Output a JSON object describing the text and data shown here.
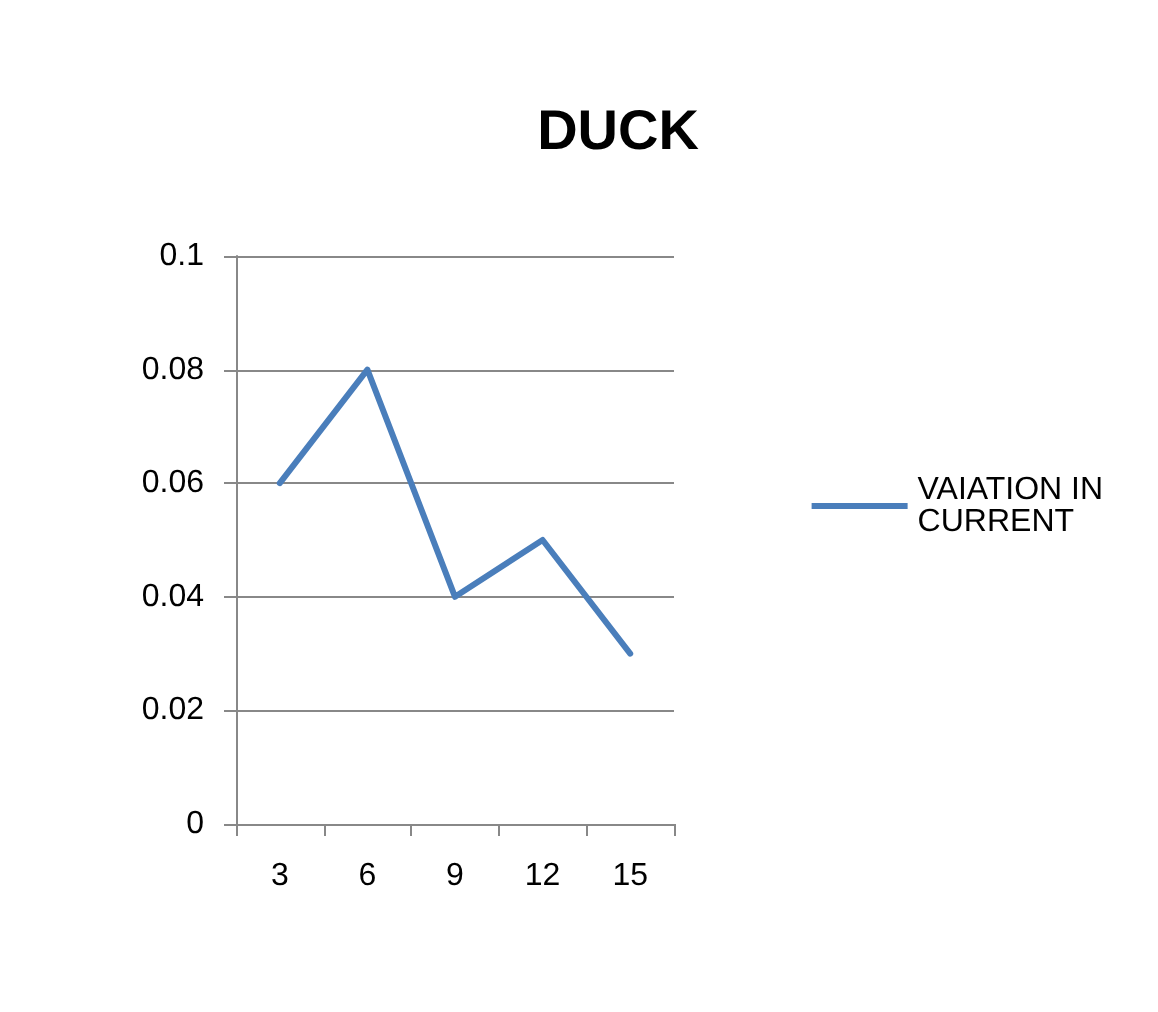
{
  "chart_data": {
    "type": "line",
    "title": "DUCK",
    "categories": [
      "3",
      "6",
      "9",
      "12",
      "15"
    ],
    "series": [
      {
        "name": "VAIATION IN CURRENT",
        "color": "#4a7ebb",
        "values": [
          0.06,
          0.08,
          0.04,
          0.05,
          0.03
        ]
      }
    ],
    "ylim": [
      0,
      0.1
    ],
    "yticks": [
      0,
      0.02,
      0.04,
      0.06,
      0.08,
      0.1
    ],
    "grid": "y",
    "legend": "right",
    "marker": "none",
    "line_style": "solid"
  }
}
